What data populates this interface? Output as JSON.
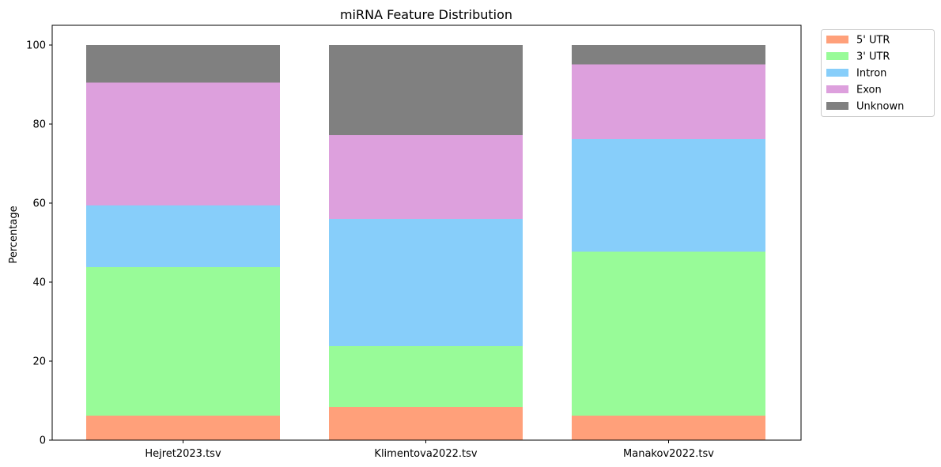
{
  "chart_data": {
    "type": "bar",
    "stacked": true,
    "title": "miRNA Feature Distribution",
    "xlabel": "",
    "ylabel": "Percentage",
    "ylim": [
      0,
      105
    ],
    "yticks": [
      0,
      20,
      40,
      60,
      80,
      100
    ],
    "grid": false,
    "legend_position": "outside-top-right",
    "categories": [
      "Hejret2023.tsv",
      "Klimentova2022.tsv",
      "Manakov2022.tsv"
    ],
    "series": [
      {
        "name": "5' UTR",
        "color": "#ffa07a",
        "values": [
          6.2,
          8.4,
          6.2
        ]
      },
      {
        "name": "3' UTR",
        "color": "#98fb98",
        "values": [
          37.6,
          15.4,
          41.5
        ]
      },
      {
        "name": "Intron",
        "color": "#87cefa",
        "values": [
          15.6,
          32.2,
          28.5
        ]
      },
      {
        "name": "Exon",
        "color": "#dda0dd",
        "values": [
          31.1,
          21.2,
          18.9
        ]
      },
      {
        "name": "Unknown",
        "color": "#808080",
        "values": [
          9.5,
          22.8,
          4.9
        ]
      }
    ]
  }
}
